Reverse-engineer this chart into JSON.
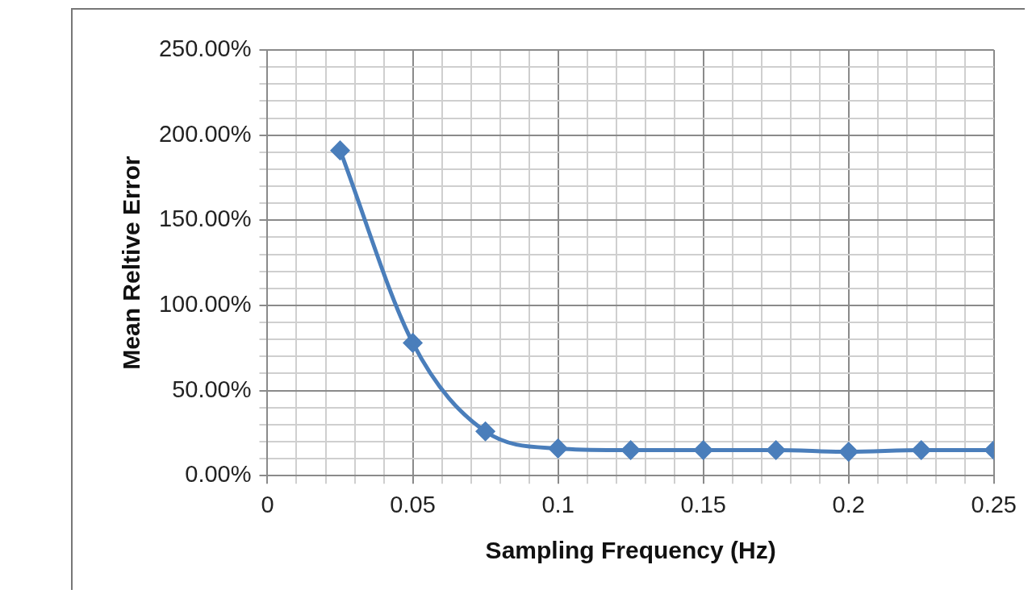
{
  "chart_data": {
    "type": "line",
    "xlabel": "Sampling Frequency (Hz)",
    "ylabel": "Mean Reltive Error",
    "x": [
      0.025,
      0.05,
      0.075,
      0.1,
      0.125,
      0.15,
      0.175,
      0.2,
      0.225,
      0.25
    ],
    "series": [
      {
        "color": "#4a7ebb",
        "values": [
          191,
          78,
          26,
          16,
          15,
          15,
          15,
          14,
          15,
          15
        ]
      }
    ],
    "xlim": [
      0,
      0.25
    ],
    "xticks": [
      0,
      {
        "value": 0.01,
        "label": null
      },
      {
        "value": 0.02,
        "label": null
      },
      {
        "value": 0.03,
        "label": null
      },
      {
        "value": 0.04,
        "label": null
      },
      0.05,
      {
        "value": 0.06,
        "label": null
      },
      {
        "value": 0.07,
        "label": null
      },
      {
        "value": 0.08,
        "label": null
      },
      {
        "value": 0.09,
        "label": null
      },
      0.1,
      {
        "value": 0.11,
        "label": null
      },
      {
        "value": 0.12,
        "label": null
      },
      {
        "value": 0.13,
        "label": null
      },
      {
        "value": 0.14,
        "label": null
      },
      0.15,
      {
        "value": 0.16,
        "label": null
      },
      {
        "value": 0.17,
        "label": null
      },
      {
        "value": 0.18,
        "label": null
      },
      {
        "value": 0.19,
        "label": null
      },
      0.2,
      {
        "value": 0.21,
        "label": null
      },
      {
        "value": 0.22,
        "label": null
      },
      {
        "value": 0.23,
        "label": null
      },
      {
        "value": 0.24,
        "label": null
      },
      0.25
    ],
    "ylim": [
      0,
      250
    ],
    "yticks": [
      {
        "value": 0,
        "label": "0.00%"
      },
      {
        "value": 10,
        "label": null
      },
      {
        "value": 20,
        "label": null
      },
      {
        "value": 30,
        "label": null
      },
      {
        "value": 40,
        "label": null
      },
      {
        "value": 50,
        "label": "50.00%"
      },
      {
        "value": 60,
        "label": null
      },
      {
        "value": 70,
        "label": null
      },
      {
        "value": 80,
        "label": null
      },
      {
        "value": 90,
        "label": null
      },
      {
        "value": 100,
        "label": "100.00%"
      },
      {
        "value": 110,
        "label": null
      },
      {
        "value": 120,
        "label": null
      },
      {
        "value": 130,
        "label": null
      },
      {
        "value": 140,
        "label": null
      },
      {
        "value": 150,
        "label": "150.00%"
      },
      {
        "value": 160,
        "label": null
      },
      {
        "value": 170,
        "label": null
      },
      {
        "value": 180,
        "label": null
      },
      {
        "value": 190,
        "label": null
      },
      {
        "value": 200,
        "label": "200.00%"
      },
      {
        "value": 210,
        "label": null
      },
      {
        "value": 220,
        "label": null
      },
      {
        "value": 230,
        "label": null
      },
      {
        "value": 240,
        "label": null
      },
      {
        "value": 250,
        "label": "250.00%"
      }
    ],
    "grid": true,
    "legend": false,
    "marker": "diamond",
    "line_style": "solid"
  }
}
